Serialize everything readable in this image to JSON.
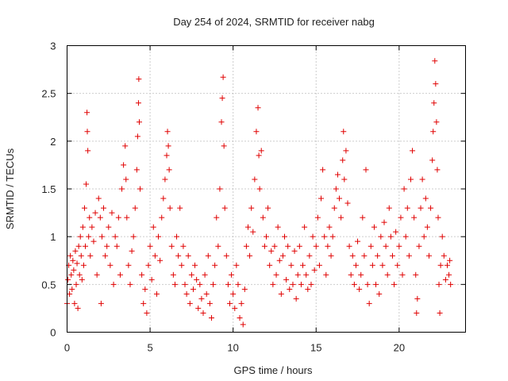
{
  "chart_data": {
    "type": "scatter",
    "title": "Day 254 of 2024, SRMTID for receiver nabg",
    "xlabel": "GPS time / hours",
    "ylabel": "SRMTID / TECUs",
    "xlim": [
      0,
      24
    ],
    "ylim": [
      0,
      3
    ],
    "xticks": [
      "0",
      "5",
      "10",
      "15",
      "20"
    ],
    "yticks": [
      "0",
      "0.5",
      "1",
      "1.5",
      "2",
      "2.5",
      "3"
    ],
    "grid": true,
    "marker": "+",
    "color": "#e00000",
    "series": [
      {
        "points": [
          [
            0.0,
            0.3
          ],
          [
            0.05,
            0.55
          ],
          [
            0.1,
            0.7
          ],
          [
            0.15,
            0.4
          ],
          [
            0.2,
            0.8
          ],
          [
            0.25,
            0.6
          ],
          [
            0.3,
            0.45
          ],
          [
            0.35,
            0.75
          ],
          [
            0.4,
            0.65
          ],
          [
            0.45,
            0.3
          ],
          [
            0.5,
            0.85
          ],
          [
            0.55,
            0.5
          ],
          [
            0.6,
            0.72
          ],
          [
            0.65,
            0.25
          ],
          [
            0.7,
            0.9
          ],
          [
            0.75,
            0.6
          ],
          [
            0.8,
            1.0
          ],
          [
            0.85,
            0.8
          ],
          [
            0.9,
            0.55
          ],
          [
            0.95,
            1.1
          ],
          [
            1.0,
            0.7
          ],
          [
            1.05,
            1.3
          ],
          [
            1.1,
            0.9
          ],
          [
            1.15,
            1.55
          ],
          [
            1.2,
            2.3
          ],
          [
            1.22,
            2.1
          ],
          [
            1.25,
            1.9
          ],
          [
            1.3,
            1.0
          ],
          [
            1.35,
            1.2
          ],
          [
            1.4,
            0.8
          ],
          [
            1.5,
            1.1
          ],
          [
            1.6,
            0.95
          ],
          [
            1.7,
            1.25
          ],
          [
            1.8,
            0.6
          ],
          [
            1.9,
            1.4
          ],
          [
            2.0,
            1.2
          ],
          [
            2.05,
            0.3
          ],
          [
            2.1,
            1.0
          ],
          [
            2.2,
            1.3
          ],
          [
            2.3,
            0.8
          ],
          [
            2.4,
            0.9
          ],
          [
            2.5,
            1.1
          ],
          [
            2.6,
            0.7
          ],
          [
            2.7,
            1.25
          ],
          [
            2.8,
            0.5
          ],
          [
            2.9,
            1.0
          ],
          [
            3.0,
            0.9
          ],
          [
            3.1,
            1.2
          ],
          [
            3.2,
            0.6
          ],
          [
            3.3,
            1.5
          ],
          [
            3.4,
            1.75
          ],
          [
            3.5,
            1.95
          ],
          [
            3.55,
            1.6
          ],
          [
            3.6,
            1.2
          ],
          [
            3.7,
            0.7
          ],
          [
            3.8,
            0.5
          ],
          [
            3.9,
            0.85
          ],
          [
            4.0,
            1.0
          ],
          [
            4.1,
            1.3
          ],
          [
            4.2,
            1.7
          ],
          [
            4.25,
            2.05
          ],
          [
            4.3,
            2.4
          ],
          [
            4.32,
            2.65
          ],
          [
            4.35,
            2.2
          ],
          [
            4.4,
            1.5
          ],
          [
            4.5,
            0.6
          ],
          [
            4.6,
            0.3
          ],
          [
            4.7,
            0.45
          ],
          [
            4.8,
            0.2
          ],
          [
            4.9,
            0.7
          ],
          [
            5.0,
            0.9
          ],
          [
            5.1,
            0.55
          ],
          [
            5.2,
            1.1
          ],
          [
            5.3,
            0.8
          ],
          [
            5.4,
            0.4
          ],
          [
            5.5,
            1.0
          ],
          [
            5.6,
            0.75
          ],
          [
            5.7,
            1.2
          ],
          [
            5.8,
            1.4
          ],
          [
            5.9,
            1.6
          ],
          [
            6.0,
            1.85
          ],
          [
            6.05,
            2.1
          ],
          [
            6.1,
            1.95
          ],
          [
            6.15,
            1.7
          ],
          [
            6.2,
            1.3
          ],
          [
            6.3,
            0.9
          ],
          [
            6.4,
            0.6
          ],
          [
            6.5,
            0.5
          ],
          [
            6.6,
            1.0
          ],
          [
            6.7,
            0.8
          ],
          [
            6.8,
            1.3
          ],
          [
            6.9,
            0.7
          ],
          [
            7.0,
            0.9
          ],
          [
            7.1,
            0.5
          ],
          [
            7.2,
            0.4
          ],
          [
            7.3,
            0.8
          ],
          [
            7.4,
            0.3
          ],
          [
            7.5,
            0.6
          ],
          [
            7.6,
            0.45
          ],
          [
            7.7,
            0.7
          ],
          [
            7.8,
            0.55
          ],
          [
            7.9,
            0.25
          ],
          [
            8.0,
            0.5
          ],
          [
            8.1,
            0.35
          ],
          [
            8.2,
            0.2
          ],
          [
            8.3,
            0.6
          ],
          [
            8.4,
            0.4
          ],
          [
            8.5,
            0.8
          ],
          [
            8.6,
            0.3
          ],
          [
            8.7,
            0.15
          ],
          [
            8.8,
            0.5
          ],
          [
            8.9,
            0.7
          ],
          [
            9.0,
            1.2
          ],
          [
            9.1,
            0.9
          ],
          [
            9.2,
            1.5
          ],
          [
            9.3,
            2.2
          ],
          [
            9.35,
            2.45
          ],
          [
            9.4,
            2.67
          ],
          [
            9.45,
            1.95
          ],
          [
            9.5,
            1.3
          ],
          [
            9.6,
            0.8
          ],
          [
            9.7,
            0.5
          ],
          [
            9.8,
            0.3
          ],
          [
            9.9,
            0.6
          ],
          [
            10.0,
            0.4
          ],
          [
            10.1,
            0.25
          ],
          [
            10.2,
            0.7
          ],
          [
            10.3,
            0.5
          ],
          [
            10.4,
            0.15
          ],
          [
            10.5,
            0.3
          ],
          [
            10.6,
            0.08
          ],
          [
            10.7,
            0.45
          ],
          [
            10.8,
            0.9
          ],
          [
            10.9,
            1.1
          ],
          [
            11.0,
            0.8
          ],
          [
            11.1,
            1.3
          ],
          [
            11.2,
            1.05
          ],
          [
            11.3,
            1.6
          ],
          [
            11.4,
            2.1
          ],
          [
            11.5,
            2.35
          ],
          [
            11.55,
            1.85
          ],
          [
            11.6,
            1.5
          ],
          [
            11.7,
            1.9
          ],
          [
            11.8,
            1.2
          ],
          [
            11.9,
            0.9
          ],
          [
            12.0,
            1.0
          ],
          [
            12.1,
            1.3
          ],
          [
            12.2,
            0.7
          ],
          [
            12.3,
            0.85
          ],
          [
            12.4,
            0.5
          ],
          [
            12.5,
            0.9
          ],
          [
            12.6,
            0.6
          ],
          [
            12.7,
            1.1
          ],
          [
            12.8,
            0.75
          ],
          [
            12.9,
            0.4
          ],
          [
            13.0,
            0.8
          ],
          [
            13.1,
            1.0
          ],
          [
            13.2,
            0.55
          ],
          [
            13.3,
            0.9
          ],
          [
            13.4,
            0.45
          ],
          [
            13.5,
            0.7
          ],
          [
            13.6,
            0.5
          ],
          [
            13.7,
            0.85
          ],
          [
            13.8,
            0.35
          ],
          [
            13.9,
            0.6
          ],
          [
            14.0,
            0.9
          ],
          [
            14.1,
            0.5
          ],
          [
            14.2,
            0.7
          ],
          [
            14.3,
            1.1
          ],
          [
            14.4,
            0.6
          ],
          [
            14.5,
            0.45
          ],
          [
            14.6,
            0.8
          ],
          [
            14.7,
            0.5
          ],
          [
            14.8,
            1.0
          ],
          [
            14.9,
            0.65
          ],
          [
            15.0,
            0.9
          ],
          [
            15.1,
            1.2
          ],
          [
            15.2,
            0.7
          ],
          [
            15.3,
            1.4
          ],
          [
            15.4,
            1.7
          ],
          [
            15.5,
            1.0
          ],
          [
            15.6,
            0.6
          ],
          [
            15.7,
            0.9
          ],
          [
            15.8,
            1.1
          ],
          [
            15.9,
            0.8
          ],
          [
            16.0,
            1.0
          ],
          [
            16.1,
            1.3
          ],
          [
            16.2,
            1.5
          ],
          [
            16.3,
            1.65
          ],
          [
            16.4,
            1.4
          ],
          [
            16.5,
            1.2
          ],
          [
            16.6,
            1.8
          ],
          [
            16.65,
            2.1
          ],
          [
            16.7,
            1.6
          ],
          [
            16.8,
            1.9
          ],
          [
            16.9,
            1.35
          ],
          [
            17.0,
            0.9
          ],
          [
            17.1,
            0.6
          ],
          [
            17.2,
            0.8
          ],
          [
            17.3,
            0.5
          ],
          [
            17.4,
            0.7
          ],
          [
            17.5,
            0.95
          ],
          [
            17.6,
            0.45
          ],
          [
            17.7,
            0.6
          ],
          [
            17.8,
            1.2
          ],
          [
            17.9,
            0.8
          ],
          [
            18.0,
            1.7
          ],
          [
            18.1,
            0.5
          ],
          [
            18.2,
            0.3
          ],
          [
            18.3,
            0.9
          ],
          [
            18.4,
            0.7
          ],
          [
            18.5,
            1.1
          ],
          [
            18.6,
            0.5
          ],
          [
            18.7,
            0.8
          ],
          [
            18.8,
            0.4
          ],
          [
            18.9,
            1.0
          ],
          [
            19.0,
            0.7
          ],
          [
            19.1,
            1.15
          ],
          [
            19.2,
            0.9
          ],
          [
            19.3,
            0.6
          ],
          [
            19.4,
            1.3
          ],
          [
            19.5,
            1.0
          ],
          [
            19.6,
            0.8
          ],
          [
            19.7,
            0.5
          ],
          [
            19.8,
            1.05
          ],
          [
            19.9,
            0.7
          ],
          [
            20.0,
            0.9
          ],
          [
            20.1,
            1.2
          ],
          [
            20.2,
            0.6
          ],
          [
            20.3,
            1.5
          ],
          [
            20.4,
            1.0
          ],
          [
            20.5,
            1.3
          ],
          [
            20.6,
            0.8
          ],
          [
            20.7,
            1.6
          ],
          [
            20.8,
            1.9
          ],
          [
            20.9,
            1.2
          ],
          [
            21.0,
            0.6
          ],
          [
            21.05,
            0.2
          ],
          [
            21.1,
            0.35
          ],
          [
            21.2,
            0.9
          ],
          [
            21.3,
            1.3
          ],
          [
            21.4,
            1.6
          ],
          [
            21.5,
            1.0
          ],
          [
            21.6,
            1.4
          ],
          [
            21.7,
            1.1
          ],
          [
            21.8,
            0.8
          ],
          [
            21.9,
            1.3
          ],
          [
            22.0,
            1.8
          ],
          [
            22.05,
            2.1
          ],
          [
            22.1,
            2.4
          ],
          [
            22.15,
            2.84
          ],
          [
            22.2,
            2.6
          ],
          [
            22.25,
            2.2
          ],
          [
            22.3,
            1.7
          ],
          [
            22.35,
            1.2
          ],
          [
            22.4,
            0.5
          ],
          [
            22.45,
            0.2
          ],
          [
            22.5,
            0.7
          ],
          [
            22.6,
            1.0
          ],
          [
            22.7,
            0.8
          ],
          [
            22.8,
            0.55
          ],
          [
            22.9,
            0.7
          ],
          [
            23.0,
            0.6
          ],
          [
            23.05,
            0.75
          ],
          [
            23.1,
            0.5
          ]
        ]
      }
    ]
  }
}
